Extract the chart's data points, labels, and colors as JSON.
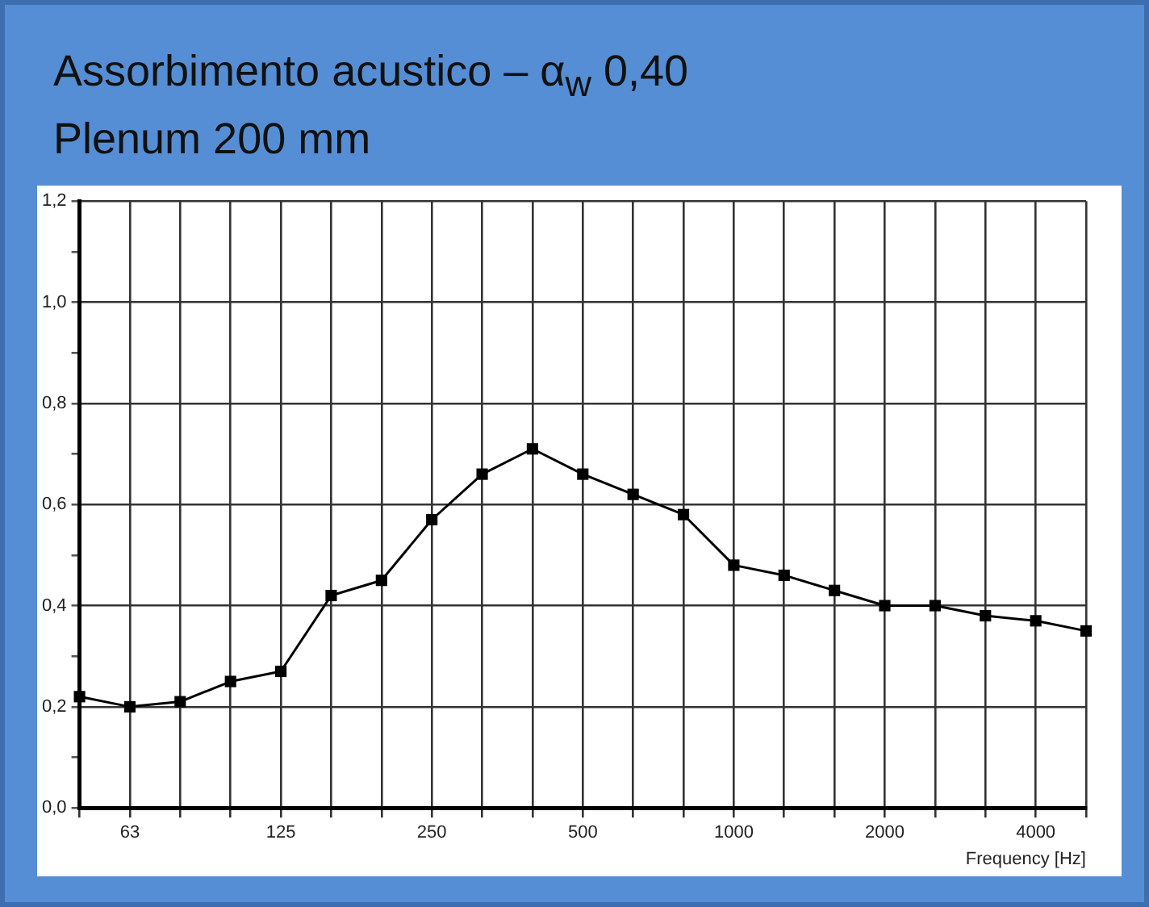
{
  "chart_data": {
    "type": "line",
    "title": "Assorbimento acustico – α$_{w}$ 0,40",
    "subtitle": "Plenum 200 mm",
    "xlabel": "Frequency [Hz]",
    "categories": [
      null,
      "63",
      null,
      null,
      "125",
      null,
      null,
      "250",
      null,
      null,
      "500",
      null,
      null,
      "1000",
      null,
      null,
      "2000",
      null,
      null,
      "4000",
      null
    ],
    "series": [
      {
        "color": "#000000",
        "values": [
          0.22,
          0.2,
          0.21,
          0.25,
          0.27,
          0.42,
          0.45,
          0.57,
          0.66,
          0.71,
          0.66,
          0.62,
          0.58,
          0.48,
          0.46,
          0.43,
          0.4,
          0.4,
          0.38,
          0.37,
          0.35
        ]
      }
    ],
    "ylim": [
      0,
      1.2
    ],
    "yticks": [
      {
        "value": 0,
        "label": "0,0"
      },
      {
        "value": 0.1,
        "label": null
      },
      {
        "value": 0.2,
        "label": "0,2"
      },
      {
        "value": 0.3,
        "label": null
      },
      {
        "value": 0.4,
        "label": "0,4"
      },
      {
        "value": 0.5,
        "label": null
      },
      {
        "value": 0.6,
        "label": "0,6"
      },
      {
        "value": 0.7,
        "label": null
      },
      {
        "value": 0.8,
        "label": "0,8"
      },
      {
        "value": 0.9,
        "label": null
      },
      {
        "value": 1.0,
        "label": "1,0"
      },
      {
        "value": 1.1,
        "label": null
      },
      {
        "value": 1.2,
        "label": "1,2"
      }
    ],
    "grid": true,
    "legend": false,
    "marker": "square",
    "line_style": "solid"
  }
}
